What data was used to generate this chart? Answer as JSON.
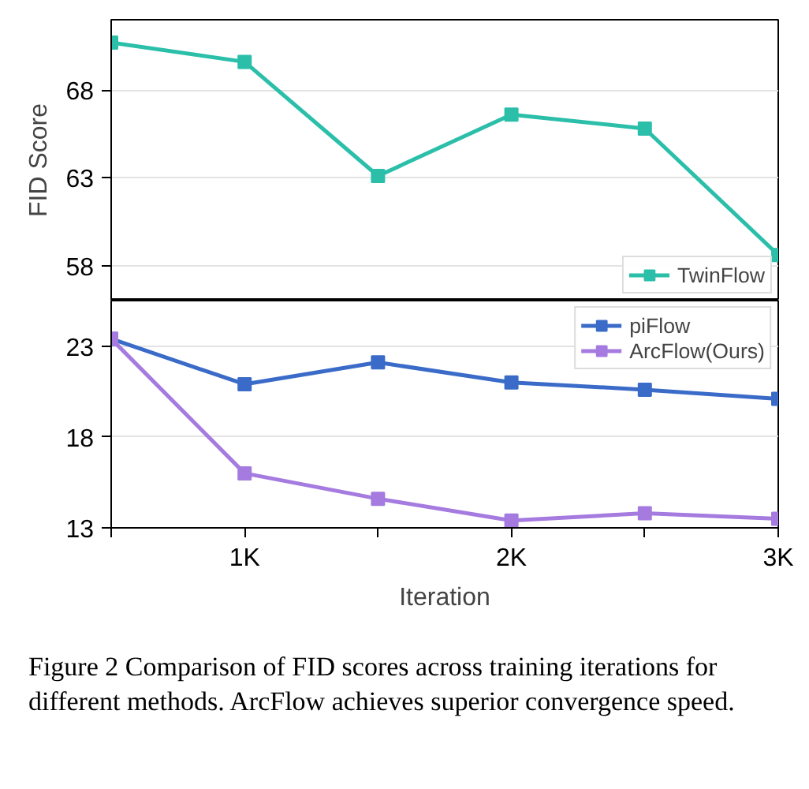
{
  "chart_data": [
    {
      "type": "line",
      "ylabel": "FID Score",
      "x": [
        500,
        1000,
        1500,
        2000,
        2500,
        3000
      ],
      "xlim": [
        500,
        3000
      ],
      "ylim": [
        56,
        72
      ],
      "yticks": [
        58,
        63,
        68
      ],
      "tick_labels": "y",
      "grid": "y",
      "marker": "square",
      "legend": "bottom right",
      "series": [
        {
          "name": "TwinFlow",
          "color": "#2bbfaa",
          "values": [
            70.7,
            69.6,
            63.1,
            66.6,
            65.8,
            58.6
          ]
        }
      ]
    },
    {
      "type": "line",
      "xlabel": "Iteration",
      "x": [
        500,
        1000,
        1500,
        2000,
        2500,
        3000
      ],
      "xlim": [
        500,
        3000
      ],
      "xticks": [
        {
          "value": 500,
          "label": null
        },
        {
          "value": 1000,
          "label": "1K"
        },
        {
          "value": 1500,
          "label": null
        },
        {
          "value": 2000,
          "label": "2K"
        },
        {
          "value": 2500,
          "label": null
        },
        {
          "value": 3000,
          "label": "3K"
        }
      ],
      "ylim": [
        13,
        25.5
      ],
      "yticks": [
        13,
        18,
        23
      ],
      "grid": "y",
      "marker": "square",
      "legend": "top right",
      "annotations": [
        "Figure 2  Comparison of FID scores across training iterations for different methods. ArcFlow achieves superior convergence speed."
      ],
      "series": [
        {
          "name": "piFlow",
          "color": "#3a6bc8",
          "values": [
            23.4,
            20.9,
            22.1,
            21.0,
            20.6,
            20.1
          ]
        },
        {
          "name": "ArcFlow(Ours)",
          "color": "#a57be0",
          "values": [
            23.4,
            16.0,
            14.6,
            13.4,
            13.8,
            13.5
          ]
        }
      ]
    }
  ]
}
